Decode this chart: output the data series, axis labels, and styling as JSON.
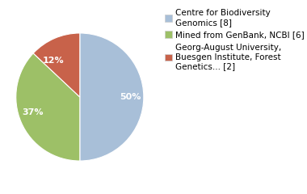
{
  "slices": [
    50,
    37,
    13
  ],
  "pct_labels": [
    "50%",
    "37%",
    "12%"
  ],
  "colors": [
    "#a8bfd8",
    "#9dc067",
    "#c8624a"
  ],
  "legend_labels": [
    "Centre for Biodiversity\nGenomics [8]",
    "Mined from GenBank, NCBI [6]",
    "Georg-August University,\nBuesgen Institute, Forest\nGenetics... [2]"
  ],
  "startangle": 90,
  "pct_fontsize": 8,
  "legend_fontsize": 7.5
}
